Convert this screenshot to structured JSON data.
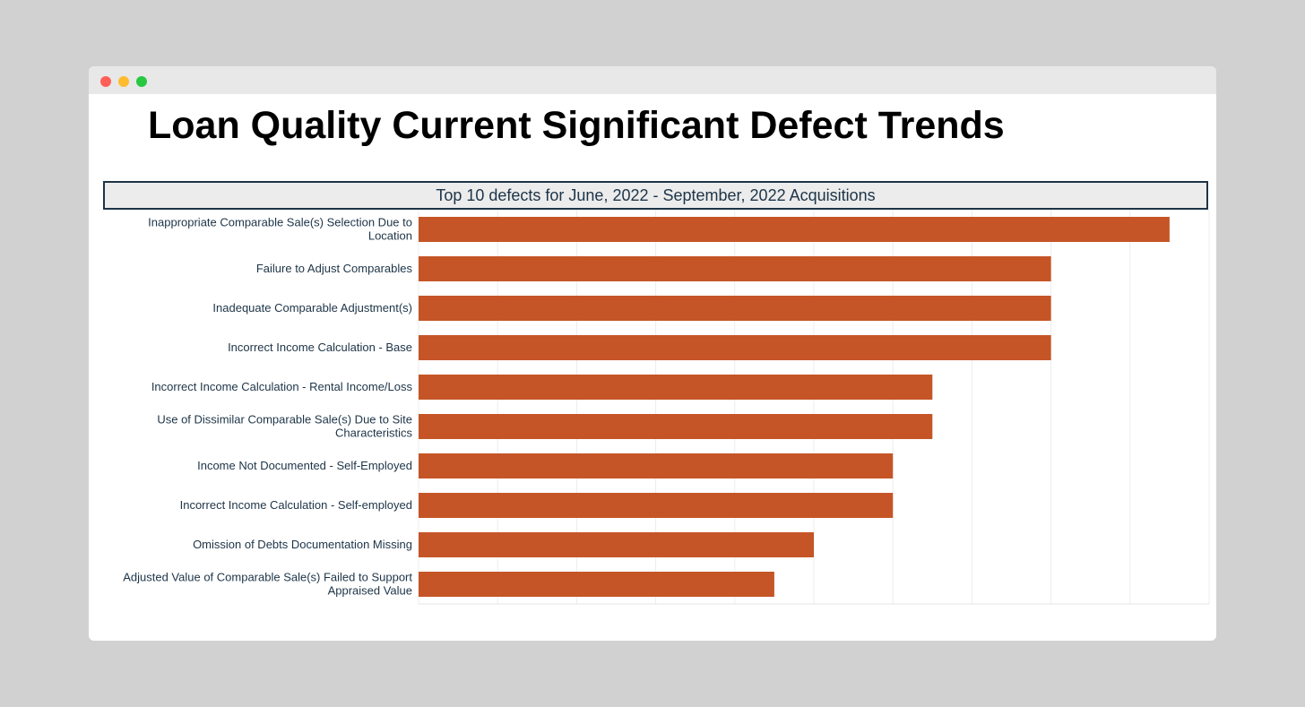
{
  "window": {
    "controls": [
      "close",
      "minimize",
      "maximize"
    ]
  },
  "page_title": "Loan Quality Current Significant Defect Trends",
  "chart_data": {
    "type": "bar",
    "orientation": "horizontal",
    "title": "Top 10 defects for June, 2022 - September, 2022 Acquisitions",
    "xlabel": "",
    "ylabel": "",
    "xlim": [
      0,
      10
    ],
    "grid": true,
    "categories": [
      "Inappropriate Comparable Sale(s) Selection Due to Location",
      "Failure to Adjust Comparables",
      "Inadequate Comparable Adjustment(s)",
      "Incorrect Income Calculation - Base",
      "Incorrect Income Calculation - Rental Income/Loss",
      "Use of Dissimilar Comparable Sale(s) Due to Site Characteristics",
      "Income Not Documented - Self-Employed",
      "Incorrect Income Calculation - Self-employed",
      "Omission of Debts Documentation Missing",
      "Adjusted Value of Comparable Sale(s) Failed to Support Appraised Value"
    ],
    "values": [
      9.5,
      8,
      8,
      8,
      6.5,
      6.5,
      6,
      6,
      5,
      4.5
    ],
    "bar_color": "#c55527"
  }
}
